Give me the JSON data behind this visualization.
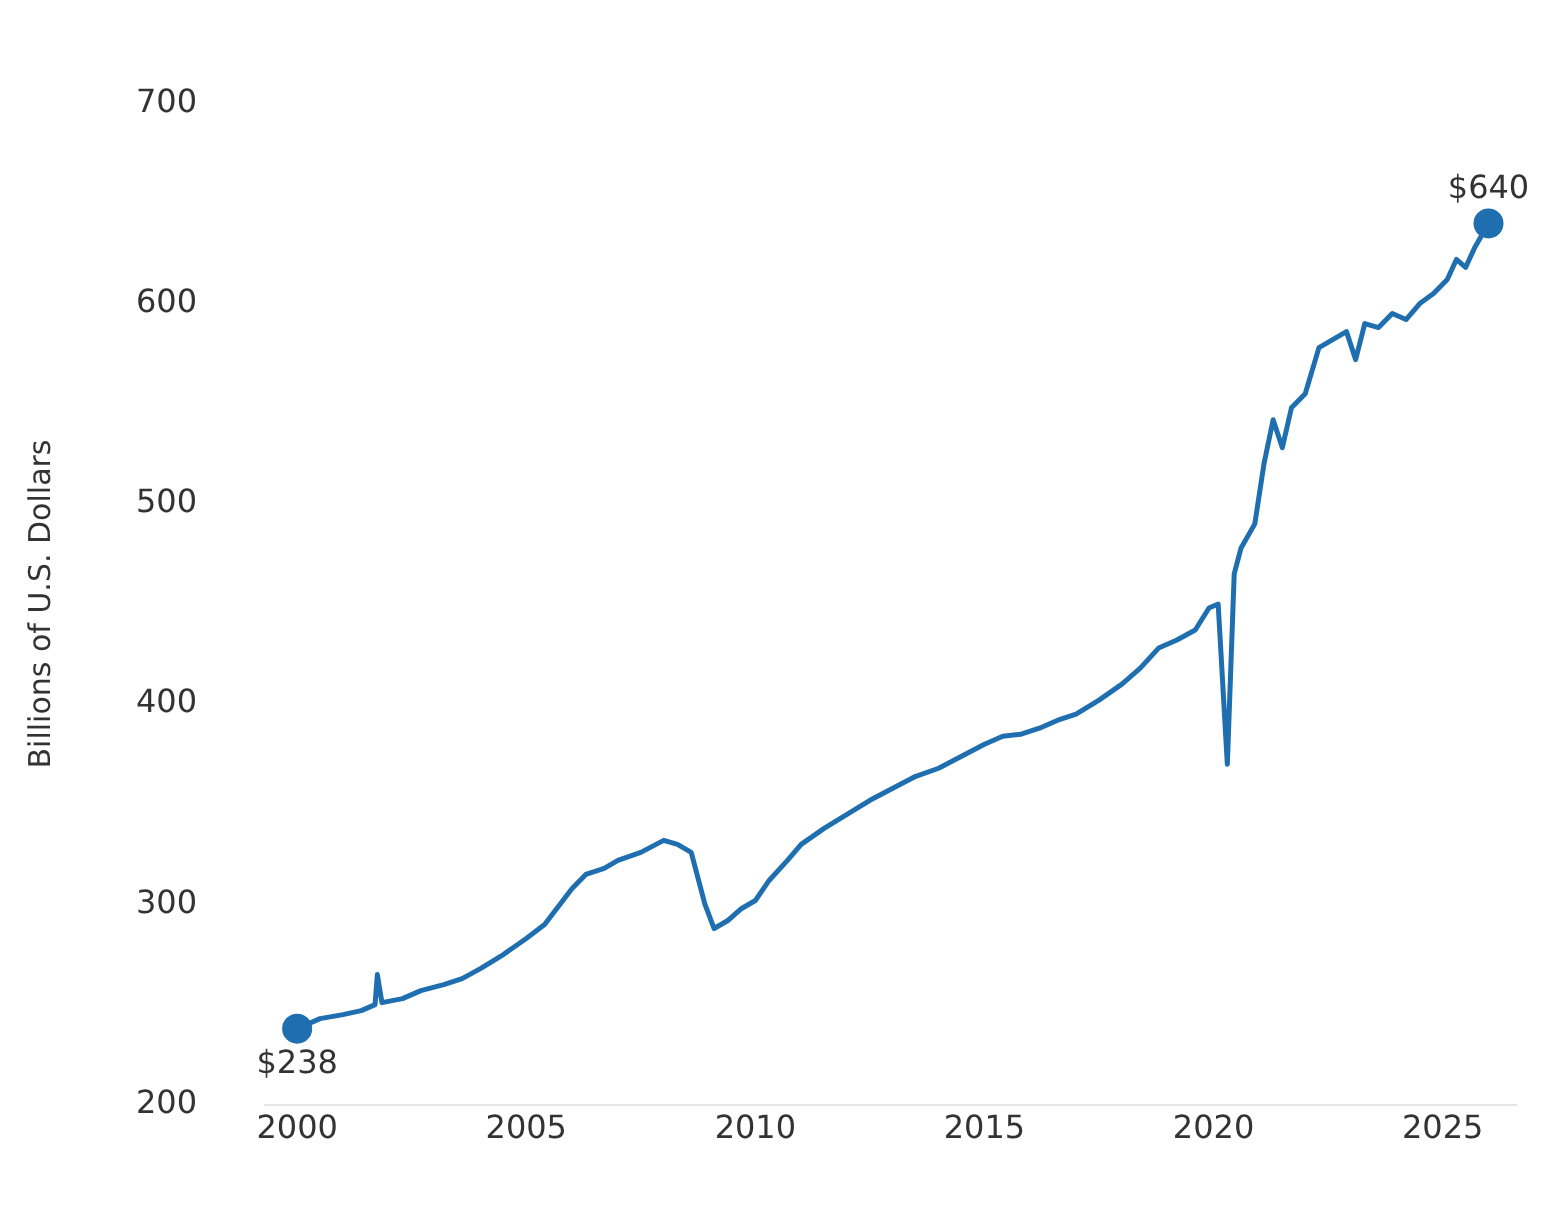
{
  "chart_data": {
    "type": "line",
    "ylabel": "Billions of U.S. Dollars",
    "xlim": [
      1999.3,
      2026.6
    ],
    "ylim": [
      200,
      700
    ],
    "xticks": [
      2000,
      2005,
      2010,
      2015,
      2020,
      2025
    ],
    "yticks": [
      200,
      300,
      400,
      500,
      600,
      700
    ],
    "grid": false,
    "legend": false,
    "marker": "none",
    "line_style": "solid",
    "series": [
      {
        "color": "#1f6fb0",
        "x": [
          2000,
          2000.5,
          2001,
          2001.4,
          2001.7,
          2001.75,
          2001.85,
          2002.3,
          2002.7,
          2003.2,
          2003.6,
          2004,
          2004.5,
          2005,
          2005.4,
          2005.7,
          2006,
          2006.3,
          2006.7,
          2007,
          2007.5,
          2008,
          2008.3,
          2008.6,
          2008.9,
          2009.1,
          2009.4,
          2009.7,
          2010,
          2010.3,
          2010.7,
          2011,
          2011.5,
          2012,
          2012.5,
          2013,
          2013.5,
          2014,
          2014.5,
          2015,
          2015.4,
          2015.8,
          2016.2,
          2016.6,
          2017,
          2017.5,
          2018,
          2018.4,
          2018.8,
          2019.2,
          2019.6,
          2019.9,
          2020.1,
          2020.3,
          2020.45,
          2020.6,
          2020.9,
          2021.1,
          2021.3,
          2021.5,
          2021.7,
          2022,
          2022.3,
          2022.6,
          2022.9,
          2023.1,
          2023.3,
          2023.6,
          2023.9,
          2024.2,
          2024.5,
          2024.8,
          2025.1,
          2025.3,
          2025.5,
          2025.7,
          2026
        ],
        "values": [
          238,
          243,
          245,
          247,
          250,
          265,
          251,
          253,
          257,
          260,
          263,
          268,
          275,
          283,
          290,
          299,
          308,
          315,
          318,
          322,
          326,
          332,
          330,
          326,
          300,
          288,
          292,
          298,
          302,
          312,
          322,
          330,
          338,
          345,
          352,
          358,
          364,
          368,
          374,
          380,
          384,
          385,
          388,
          392,
          395,
          402,
          410,
          418,
          428,
          432,
          437,
          448,
          450,
          370,
          465,
          478,
          490,
          520,
          542,
          528,
          548,
          555,
          578,
          582,
          586,
          572,
          590,
          588,
          595,
          592,
          600,
          605,
          612,
          622,
          618,
          628,
          640
        ]
      },
      {
        "type": "scatter",
        "marker": "circle",
        "color": "#1f6fb0",
        "x": [
          2000,
          2026
        ],
        "values": [
          238,
          640
        ]
      }
    ],
    "annotations": [
      {
        "text": "$238",
        "x": 2000,
        "y": 238
      },
      {
        "text": "$640",
        "x": 2026,
        "y": 640
      }
    ]
  }
}
